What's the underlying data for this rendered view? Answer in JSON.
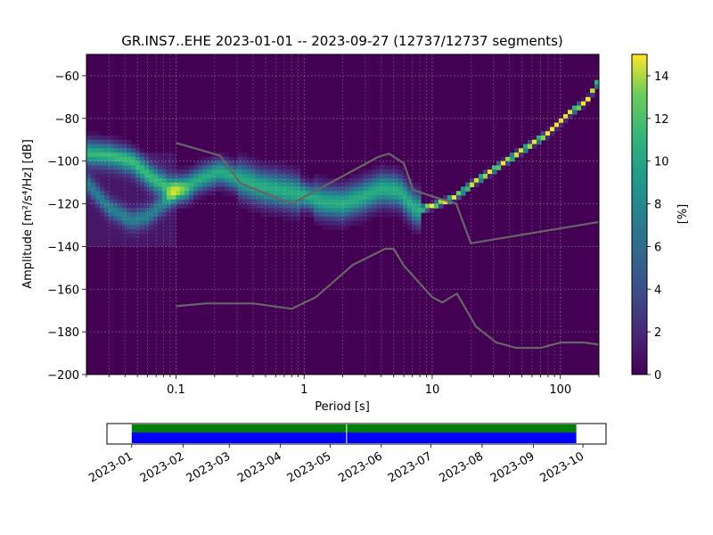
{
  "chart_data": {
    "type": "heatmap",
    "title": "GR.INS7..EHE   2023-01-01 -- 2023-09-27  (12737/12737 segments)",
    "xlabel": "Period [s]",
    "ylabel": "Amplitude [m²/s⁴/Hz] [dB]",
    "xscale": "log",
    "xlim": [
      0.02,
      200
    ],
    "ylim": [
      -200,
      -50
    ],
    "x_ticks": [
      {
        "value": 0.1,
        "label": "0.1"
      },
      {
        "value": 1,
        "label": "1"
      },
      {
        "value": 10,
        "label": "10"
      },
      {
        "value": 100,
        "label": "100"
      }
    ],
    "y_ticks": [
      {
        "value": -60,
        "label": "−60"
      },
      {
        "value": -80,
        "label": "−80"
      },
      {
        "value": -100,
        "label": "−100"
      },
      {
        "value": -120,
        "label": "−120"
      },
      {
        "value": -140,
        "label": "−140"
      },
      {
        "value": -160,
        "label": "−160"
      },
      {
        "value": -180,
        "label": "−180"
      },
      {
        "value": -200,
        "label": "−200"
      }
    ],
    "grid": true,
    "colormap": "viridis",
    "colorbar": {
      "label": "[%]",
      "range": [
        0,
        15
      ],
      "ticks": [
        {
          "value": 0,
          "label": "0"
        },
        {
          "value": 2,
          "label": "2"
        },
        {
          "value": 4,
          "label": "4"
        },
        {
          "value": 6,
          "label": "6"
        },
        {
          "value": 8,
          "label": "8"
        },
        {
          "value": 10,
          "label": "10"
        },
        {
          "value": 12,
          "label": "12"
        },
        {
          "value": 14,
          "label": "14"
        }
      ]
    },
    "psd_mode_main": [
      [
        0.02,
        -96
      ],
      [
        0.03,
        -97
      ],
      [
        0.045,
        -100
      ],
      [
        0.065,
        -108
      ],
      [
        0.09,
        -113
      ],
      [
        0.12,
        -112
      ],
      [
        0.16,
        -108
      ],
      [
        0.22,
        -105
      ],
      [
        0.3,
        -108
      ],
      [
        0.45,
        -112
      ],
      [
        0.7,
        -114
      ],
      [
        1.0,
        -116
      ],
      [
        1.4,
        -119
      ],
      [
        2.0,
        -120
      ],
      [
        2.8,
        -117
      ],
      [
        4.0,
        -113
      ],
      [
        5.5,
        -114
      ],
      [
        7.5,
        -123
      ],
      [
        10,
        -121
      ],
      [
        15,
        -117
      ],
      [
        20,
        -111
      ],
      [
        30,
        -104
      ],
      [
        50,
        -95
      ],
      [
        80,
        -87
      ],
      [
        120,
        -77
      ],
      [
        160,
        -72
      ],
      [
        200,
        -62
      ]
    ],
    "psd_mode_secondary": [
      [
        0.02,
        -110
      ],
      [
        0.03,
        -122
      ],
      [
        0.045,
        -128
      ],
      [
        0.06,
        -126
      ],
      [
        0.08,
        -120
      ],
      [
        0.1,
        -115
      ]
    ],
    "noise_model_high": {
      "name": "",
      "points": [
        [
          0.1,
          -91.5
        ],
        [
          0.22,
          -97.4
        ],
        [
          0.32,
          -110.5
        ],
        [
          0.8,
          -120
        ],
        [
          3.8,
          -98
        ],
        [
          4.6,
          -96.5
        ],
        [
          6,
          -101
        ],
        [
          7.1,
          -113.5
        ],
        [
          10,
          -116.5
        ],
        [
          15.4,
          -120
        ],
        [
          20,
          -138.5
        ],
        [
          200,
          -128.5
        ]
      ]
    },
    "noise_model_low": {
      "name": "",
      "points": [
        [
          0.1,
          -168
        ],
        [
          0.17,
          -166.7
        ],
        [
          0.4,
          -166.7
        ],
        [
          0.8,
          -169.2
        ],
        [
          1.24,
          -163.7
        ],
        [
          2.4,
          -148.6
        ],
        [
          4.3,
          -141.1
        ],
        [
          5.0,
          -141.1
        ],
        [
          6.0,
          -149
        ],
        [
          10,
          -163.8
        ],
        [
          12,
          -166.2
        ],
        [
          15.6,
          -162.1
        ],
        [
          21.9,
          -177.5
        ],
        [
          31.6,
          -185
        ],
        [
          45,
          -187.5
        ],
        [
          70,
          -187.5
        ],
        [
          101,
          -185
        ],
        [
          154,
          -185
        ],
        [
          200,
          -186
        ]
      ]
    },
    "coverage": {
      "start": "2023-01-01",
      "end": "2023-09-27",
      "xlim": [
        "2022-12-17",
        "2023-10-15"
      ],
      "data_color": "#0000ff",
      "psd_color": "#008000",
      "gap_dates": [
        "2023-05-11"
      ],
      "x_ticks": [
        {
          "value": "2023-01-01",
          "label": "2023-01"
        },
        {
          "value": "2023-02-01",
          "label": "2023-02"
        },
        {
          "value": "2023-03-01",
          "label": "2023-03"
        },
        {
          "value": "2023-04-01",
          "label": "2023-04"
        },
        {
          "value": "2023-05-01",
          "label": "2023-05"
        },
        {
          "value": "2023-06-01",
          "label": "2023-06"
        },
        {
          "value": "2023-07-01",
          "label": "2023-07"
        },
        {
          "value": "2023-08-01",
          "label": "2023-08"
        },
        {
          "value": "2023-09-01",
          "label": "2023-09"
        },
        {
          "value": "2023-10-01",
          "label": "2023-10"
        }
      ]
    }
  }
}
